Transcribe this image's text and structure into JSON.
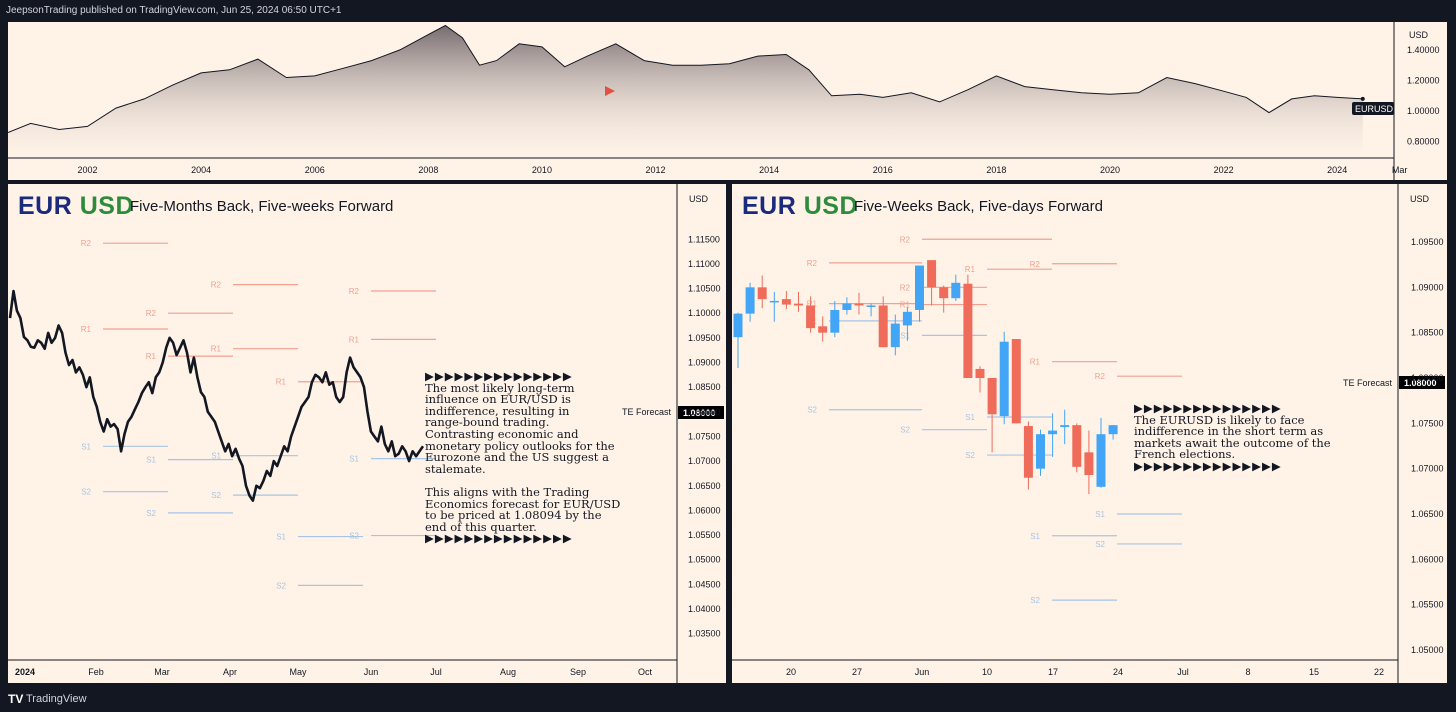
{
  "header": {
    "text": "JeepsonTrading published on TradingView.com, Jun 25, 2024 06:50 UTC+1"
  },
  "footer": {
    "logo_text": "TV",
    "brand": "TradingView"
  },
  "colors": {
    "resistance": "#f4a090",
    "support": "#a8c4e4",
    "up_candle": "#42a5f5",
    "down_candle": "#ef6c5a",
    "line": "#131722"
  },
  "panels": {
    "top": {
      "currency": "USD",
      "symbol_label": "EURUSD",
      "chart_data": {
        "type": "area",
        "series_name": "EURUSD",
        "x": [
          2000.6,
          2001.0,
          2001.5,
          2002.0,
          2002.5,
          2003.0,
          2003.5,
          2004.0,
          2004.5,
          2005.0,
          2005.5,
          2006.0,
          2006.5,
          2007.0,
          2007.5,
          2008.0,
          2008.3,
          2008.6,
          2008.9,
          2009.2,
          2009.6,
          2010.0,
          2010.4,
          2010.8,
          2011.3,
          2011.8,
          2012.3,
          2012.8,
          2013.3,
          2013.8,
          2014.3,
          2014.7,
          2015.1,
          2015.6,
          2016.0,
          2016.5,
          2017.0,
          2017.5,
          2018.0,
          2018.5,
          2019.0,
          2019.5,
          2020.0,
          2020.5,
          2021.0,
          2021.5,
          2022.0,
          2022.4,
          2022.8,
          2023.2,
          2023.6,
          2024.0,
          2024.45
        ],
        "y": [
          0.86,
          0.92,
          0.88,
          0.9,
          1.02,
          1.08,
          1.17,
          1.25,
          1.27,
          1.34,
          1.22,
          1.23,
          1.28,
          1.33,
          1.4,
          1.5,
          1.56,
          1.48,
          1.3,
          1.33,
          1.44,
          1.42,
          1.29,
          1.36,
          1.44,
          1.33,
          1.3,
          1.3,
          1.31,
          1.36,
          1.37,
          1.27,
          1.1,
          1.11,
          1.09,
          1.12,
          1.06,
          1.14,
          1.23,
          1.16,
          1.14,
          1.12,
          1.11,
          1.12,
          1.22,
          1.18,
          1.13,
          1.09,
          0.99,
          1.08,
          1.1,
          1.09,
          1.08
        ],
        "xlim": [
          2000.6,
          2025.0
        ],
        "ylim": [
          0.7,
          1.55
        ],
        "x_ticks": [
          "2002",
          "2004",
          "2006",
          "2008",
          "2010",
          "2012",
          "2014",
          "2016",
          "2018",
          "2020",
          "2022",
          "2024",
          "Mar"
        ],
        "y_ticks": [
          "1.40000",
          "1.20000",
          "1.00000",
          "0.80000"
        ]
      }
    },
    "left": {
      "title_eur": "EUR",
      "title_usd": "USD",
      "subtitle": "Five-Months Back, Five-weeks Forward",
      "currency": "USD",
      "forecast_label": "TE Forecast",
      "forecast_value": "1.08000",
      "note": {
        "arrows": "▶▶▶▶▶▶▶▶▶▶▶▶▶▶▶",
        "lines": [
          "The most likely long-term",
          "influence on EUR/USD is",
          "indifference, resulting in",
          "range-bound trading.",
          "Contrasting economic and",
          "monetary policy outlooks for the",
          "Eurozone and the US suggest a",
          "stalemate."
        ],
        "lines2": [
          "This aligns with the Trading",
          "Economics forecast for EUR/USD",
          "to be priced at 1.08094 by the",
          "end of this quarter."
        ]
      },
      "chart_data": {
        "type": "line",
        "series_name": "EURUSD",
        "x_ticks": [
          "2024",
          "Feb",
          "Mar",
          "Apr",
          "May",
          "Jun",
          "Jul",
          "Aug",
          "Sep",
          "Oct"
        ],
        "y_ticks": [
          "1.11500",
          "1.11000",
          "1.10500",
          "1.10000",
          "1.09500",
          "1.09000",
          "1.08500",
          "1.08000",
          "1.07500",
          "1.07000",
          "1.06500",
          "1.06000",
          "1.05500",
          "1.05000",
          "1.04500",
          "1.04000",
          "1.03500"
        ],
        "ylim": [
          1.0325,
          1.1185
        ],
        "values": [
          1.099,
          1.1045,
          1.1005,
          1.099,
          1.0952,
          1.0945,
          1.0932,
          1.093,
          1.0945,
          1.094,
          1.0928,
          1.096,
          1.094,
          1.095,
          1.0975,
          1.096,
          1.092,
          1.0895,
          1.0905,
          1.088,
          1.089,
          1.0875,
          1.085,
          1.087,
          1.083,
          1.081,
          1.078,
          1.076,
          1.0785,
          1.077,
          1.0775,
          1.0765,
          1.072,
          1.0755,
          1.078,
          1.079,
          1.0805,
          1.082,
          1.0838,
          1.085,
          1.086,
          1.0838,
          1.087,
          1.088,
          1.09,
          1.093,
          1.095,
          1.094,
          1.0915,
          1.093,
          1.0945,
          1.092,
          1.088,
          1.091,
          1.087,
          1.084,
          1.083,
          1.08,
          1.079,
          1.078,
          1.076,
          1.074,
          1.072,
          1.0735,
          1.071,
          1.0725,
          1.0705,
          1.069,
          1.065,
          1.063,
          1.062,
          1.065,
          1.0645,
          1.066,
          1.068,
          1.067,
          1.07,
          1.069,
          1.071,
          1.073,
          1.072,
          1.075,
          1.077,
          1.079,
          1.081,
          1.082,
          1.083,
          1.086,
          1.0875,
          1.087,
          1.086,
          1.088,
          1.0855,
          1.086,
          1.083,
          1.082,
          1.083,
          1.088,
          1.091,
          1.089,
          1.088,
          1.087,
          1.085,
          1.08,
          1.076,
          1.075,
          1.074,
          1.077,
          1.0735,
          1.072,
          1.074,
          1.071,
          1.0715,
          1.073,
          1.072,
          1.07,
          1.072,
          1.071,
          1.072,
          1.073
        ],
        "levels": [
          {
            "label": "R2",
            "type": "r",
            "price": 1.1142,
            "x0": 95,
            "x1": 160
          },
          {
            "label": "R1",
            "type": "r",
            "price": 1.0968,
            "x0": 95,
            "x1": 160
          },
          {
            "label": "R1",
            "type": "r",
            "price": 1.0913,
            "x0": 160,
            "x1": 225
          },
          {
            "label": "R2",
            "type": "r",
            "price": 1.1058,
            "x0": 225,
            "x1": 290
          },
          {
            "label": "R2",
            "type": "r",
            "price": 1.1,
            "x0": 160,
            "x1": 225
          },
          {
            "label": "R1",
            "type": "r",
            "price": 1.0928,
            "x0": 225,
            "x1": 290
          },
          {
            "label": "R1",
            "type": "r",
            "price": 1.0861,
            "x0": 290,
            "x1": 355
          },
          {
            "label": "R2",
            "type": "r",
            "price": 1.1045,
            "x0": 363,
            "x1": 428
          },
          {
            "label": "R1",
            "type": "r",
            "price": 1.0947,
            "x0": 363,
            "x1": 428
          },
          {
            "label": "S1",
            "type": "s",
            "price": 1.073,
            "x0": 95,
            "x1": 160
          },
          {
            "label": "S2",
            "type": "s",
            "price": 1.0638,
            "x0": 95,
            "x1": 160
          },
          {
            "label": "S1",
            "type": "s",
            "price": 1.0703,
            "x0": 160,
            "x1": 225
          },
          {
            "label": "S2",
            "type": "s",
            "price": 1.0595,
            "x0": 160,
            "x1": 225
          },
          {
            "label": "S1",
            "type": "s",
            "price": 1.0711,
            "x0": 225,
            "x1": 290
          },
          {
            "label": "S2",
            "type": "s",
            "price": 1.0631,
            "x0": 225,
            "x1": 290
          },
          {
            "label": "S1",
            "type": "s",
            "price": 1.0547,
            "x0": 290,
            "x1": 355
          },
          {
            "label": "S2",
            "type": "s",
            "price": 1.0448,
            "x0": 290,
            "x1": 355
          },
          {
            "label": "S1",
            "type": "s",
            "price": 1.0705,
            "x0": 363,
            "x1": 428
          },
          {
            "label": "S2",
            "type": "s",
            "price": 1.0549,
            "x0": 363,
            "x1": 428
          }
        ]
      }
    },
    "right": {
      "title_eur": "EUR",
      "title_usd": "USD",
      "subtitle": "Five-Weeks Back, Five-days Forward",
      "currency": "USD",
      "forecast_label": "TE Forecast",
      "forecast_value": "1.08000",
      "note": {
        "arrows": "▶▶▶▶▶▶▶▶▶▶▶▶▶▶▶",
        "lines": [
          "The EURUSD is likely to face",
          "indifference in the short term as",
          "markets await the outcome of the",
          "French elections."
        ],
        "arrows2": "▶▶▶▶▶▶▶▶▶▶▶▶▶▶▶"
      },
      "chart_data": {
        "type": "candlestick",
        "series_name": "EURUSD",
        "x_ticks": [
          "20",
          "27",
          "Jun",
          "10",
          "17",
          "24",
          "Jul",
          "8",
          "15",
          "22"
        ],
        "y_ticks": [
          "1.09500",
          "1.09000",
          "1.08500",
          "1.08000",
          "1.07500",
          "1.07000",
          "1.06500",
          "1.06000",
          "1.05500",
          "1.05000"
        ],
        "ylim": [
          1.049,
          1.099
        ],
        "candles": [
          {
            "o": 1.0845,
            "h": 1.0872,
            "l": 1.0811,
            "c": 1.0871
          },
          {
            "o": 1.0871,
            "h": 1.0905,
            "l": 1.0862,
            "c": 1.09
          },
          {
            "o": 1.09,
            "h": 1.0913,
            "l": 1.0877,
            "c": 1.0887
          },
          {
            "o": 1.0885,
            "h": 1.0895,
            "l": 1.0862,
            "c": 1.0885
          },
          {
            "o": 1.0887,
            "h": 1.0896,
            "l": 1.0876,
            "c": 1.0881
          },
          {
            "o": 1.0882,
            "h": 1.0895,
            "l": 1.0873,
            "c": 1.088
          },
          {
            "o": 1.088,
            "h": 1.089,
            "l": 1.085,
            "c": 1.0855
          },
          {
            "o": 1.0857,
            "h": 1.0868,
            "l": 1.084,
            "c": 1.085
          },
          {
            "o": 1.085,
            "h": 1.0885,
            "l": 1.0845,
            "c": 1.0875
          },
          {
            "o": 1.0875,
            "h": 1.0889,
            "l": 1.087,
            "c": 1.0882
          },
          {
            "o": 1.0882,
            "h": 1.0894,
            "l": 1.087,
            "c": 1.088
          },
          {
            "o": 1.088,
            "h": 1.0882,
            "l": 1.0868,
            "c": 1.088
          },
          {
            "o": 1.088,
            "h": 1.089,
            "l": 1.0834,
            "c": 1.0834
          },
          {
            "o": 1.0834,
            "h": 1.087,
            "l": 1.0825,
            "c": 1.086
          },
          {
            "o": 1.0858,
            "h": 1.0878,
            "l": 1.0841,
            "c": 1.0873
          },
          {
            "o": 1.0875,
            "h": 1.0916,
            "l": 1.0862,
            "c": 1.0924
          },
          {
            "o": 1.093,
            "h": 1.092,
            "l": 1.088,
            "c": 1.09
          },
          {
            "o": 1.09,
            "h": 1.0902,
            "l": 1.0872,
            "c": 1.0888
          },
          {
            "o": 1.0888,
            "h": 1.0914,
            "l": 1.0885,
            "c": 1.0905
          },
          {
            "o": 1.0904,
            "h": 1.0914,
            "l": 1.0835,
            "c": 1.08
          },
          {
            "o": 1.081,
            "h": 1.0813,
            "l": 1.0784,
            "c": 1.08
          },
          {
            "o": 1.08,
            "h": 1.0795,
            "l": 1.0718,
            "c": 1.076
          },
          {
            "o": 1.0758,
            "h": 1.0851,
            "l": 1.0749,
            "c": 1.084
          },
          {
            "o": 1.0843,
            "h": 1.0843,
            "l": 1.0752,
            "c": 1.075
          },
          {
            "o": 1.0747,
            "h": 1.0752,
            "l": 1.0677,
            "c": 1.069
          },
          {
            "o": 1.07,
            "h": 1.0743,
            "l": 1.0692,
            "c": 1.0738
          },
          {
            "o": 1.0738,
            "h": 1.0761,
            "l": 1.0713,
            "c": 1.0742
          },
          {
            "o": 1.0746,
            "h": 1.0765,
            "l": 1.0727,
            "c": 1.0748
          },
          {
            "o": 1.0748,
            "h": 1.075,
            "l": 1.0696,
            "c": 1.0702
          },
          {
            "o": 1.0718,
            "h": 1.0742,
            "l": 1.0672,
            "c": 1.0693
          },
          {
            "o": 1.068,
            "h": 1.0756,
            "l": 1.0679,
            "c": 1.0738
          },
          {
            "o": 1.0738,
            "h": 1.0748,
            "l": 1.0732,
            "c": 1.0748
          }
        ],
        "levels": [
          {
            "label": "R2",
            "type": "r",
            "price": 1.0927,
            "x0": 97,
            "x1": 190
          },
          {
            "label": "R1",
            "type": "r",
            "price": 1.0882,
            "x0": 97,
            "x1": 190
          },
          {
            "label": "R2",
            "type": "r",
            "price": 1.0953,
            "x0": 190,
            "x1": 320
          },
          {
            "label": "R2",
            "type": "r",
            "price": 1.09,
            "x0": 190,
            "x1": 255
          },
          {
            "label": "R1",
            "type": "r",
            "price": 1.0881,
            "x0": 190,
            "x1": 255
          },
          {
            "label": "R1",
            "type": "r",
            "price": 1.092,
            "x0": 255,
            "x1": 320
          },
          {
            "label": "R2",
            "type": "r",
            "price": 1.0926,
            "x0": 320,
            "x1": 385
          },
          {
            "label": "R1",
            "type": "r",
            "price": 1.0818,
            "x0": 320,
            "x1": 385
          },
          {
            "label": "R2",
            "type": "r",
            "price": 1.0802,
            "x0": 385,
            "x1": 450
          },
          {
            "label": "S1",
            "type": "s",
            "price": 1.0863,
            "x0": 97,
            "x1": 190
          },
          {
            "label": "S2",
            "type": "s",
            "price": 1.0765,
            "x0": 97,
            "x1": 190
          },
          {
            "label": "S1",
            "type": "s",
            "price": 1.0847,
            "x0": 190,
            "x1": 255
          },
          {
            "label": "S2",
            "type": "s",
            "price": 1.0743,
            "x0": 190,
            "x1": 255
          },
          {
            "label": "S1",
            "type": "s",
            "price": 1.0757,
            "x0": 255,
            "x1": 320
          },
          {
            "label": "S2",
            "type": "s",
            "price": 1.0715,
            "x0": 255,
            "x1": 320
          },
          {
            "label": "S1",
            "type": "s",
            "price": 1.065,
            "x0": 385,
            "x1": 450
          },
          {
            "label": "S1",
            "type": "s",
            "price": 1.0626,
            "x0": 320,
            "x1": 385
          },
          {
            "label": "S2",
            "type": "s",
            "price": 1.0617,
            "x0": 385,
            "x1": 450
          },
          {
            "label": "S2",
            "type": "s",
            "price": 1.0555,
            "x0": 320,
            "x1": 385
          }
        ]
      }
    }
  }
}
